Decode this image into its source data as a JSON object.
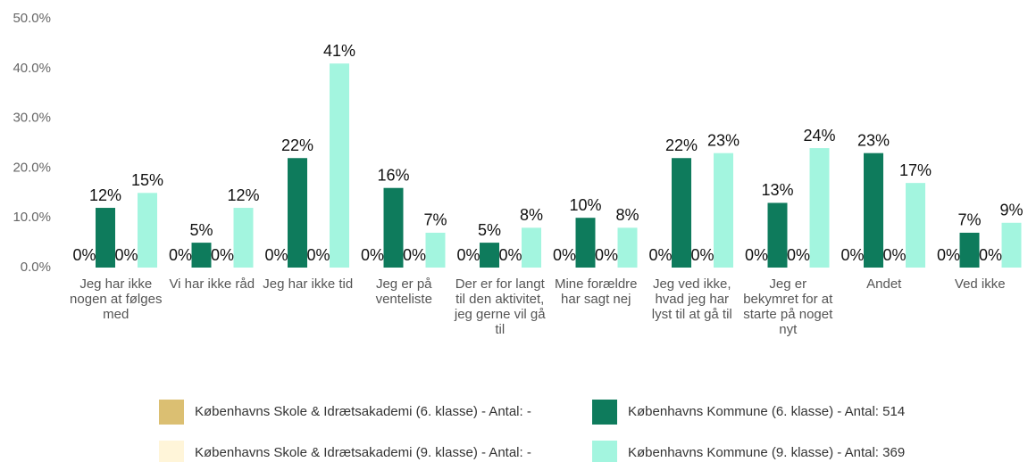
{
  "chart_data": {
    "type": "bar",
    "categories": [
      "Jeg har ikke nogen at følges med",
      "Vi har ikke råd",
      "Jeg har ikke tid",
      "Jeg er på venteliste",
      "Der er for langt til den aktivitet, jeg gerne vil gå til",
      "Mine forældre har sagt nej",
      "Jeg ved ikke, hvad jeg har lyst til at gå til",
      "Jeg er bekymret for at starte på noget nyt",
      "Andet",
      "Ved ikke"
    ],
    "series": [
      {
        "name": "Københavns Skole & Idrætsakademi (6. klasse) - Antal: -",
        "color": "#dbbf72",
        "values": [
          0,
          0,
          0,
          0,
          0,
          0,
          0,
          0,
          0,
          0
        ],
        "value_labels": [
          "0%",
          "0%",
          "0%",
          "0%",
          "0%",
          "0%",
          "0%",
          "0%",
          "0%",
          "0%"
        ]
      },
      {
        "name": "Københavns Kommune (6. klasse) - Antal: 514",
        "color": "#0e7b5c",
        "values": [
          12,
          5,
          22,
          16,
          5,
          10,
          22,
          13,
          23,
          7
        ],
        "value_labels": [
          "12%",
          "5%",
          "22%",
          "16%",
          "5%",
          "10%",
          "22%",
          "13%",
          "23%",
          "7%"
        ]
      },
      {
        "name": "Københavns Skole & Idrætsakademi (9. klasse) - Antal: -",
        "color": "#fff5d9",
        "values": [
          0,
          0,
          0,
          0,
          0,
          0,
          0,
          0,
          0,
          0
        ],
        "value_labels": [
          "0%",
          "0%",
          "0%",
          "0%",
          "0%",
          "0%",
          "0%",
          "0%",
          "0%",
          "0%"
        ]
      },
      {
        "name": "Københavns Kommune (9. klasse) - Antal: 369",
        "color": "#a3f5df",
        "values": [
          15,
          12,
          41,
          7,
          8,
          8,
          23,
          24,
          17,
          9
        ],
        "value_labels": [
          "15%",
          "12%",
          "41%",
          "7%",
          "8%",
          "8%",
          "23%",
          "24%",
          "17%",
          "9%"
        ]
      }
    ],
    "ylim": [
      0,
      50
    ],
    "yticks": [
      {
        "value": 0,
        "label": "0.0%"
      },
      {
        "value": 10,
        "label": "10.0%"
      },
      {
        "value": 20,
        "label": "20.0%"
      },
      {
        "value": 30,
        "label": "30.0%"
      },
      {
        "value": 40,
        "label": "40.0%"
      },
      {
        "value": 50,
        "label": "50.0%"
      }
    ],
    "grid": false,
    "legend": "bottom"
  }
}
